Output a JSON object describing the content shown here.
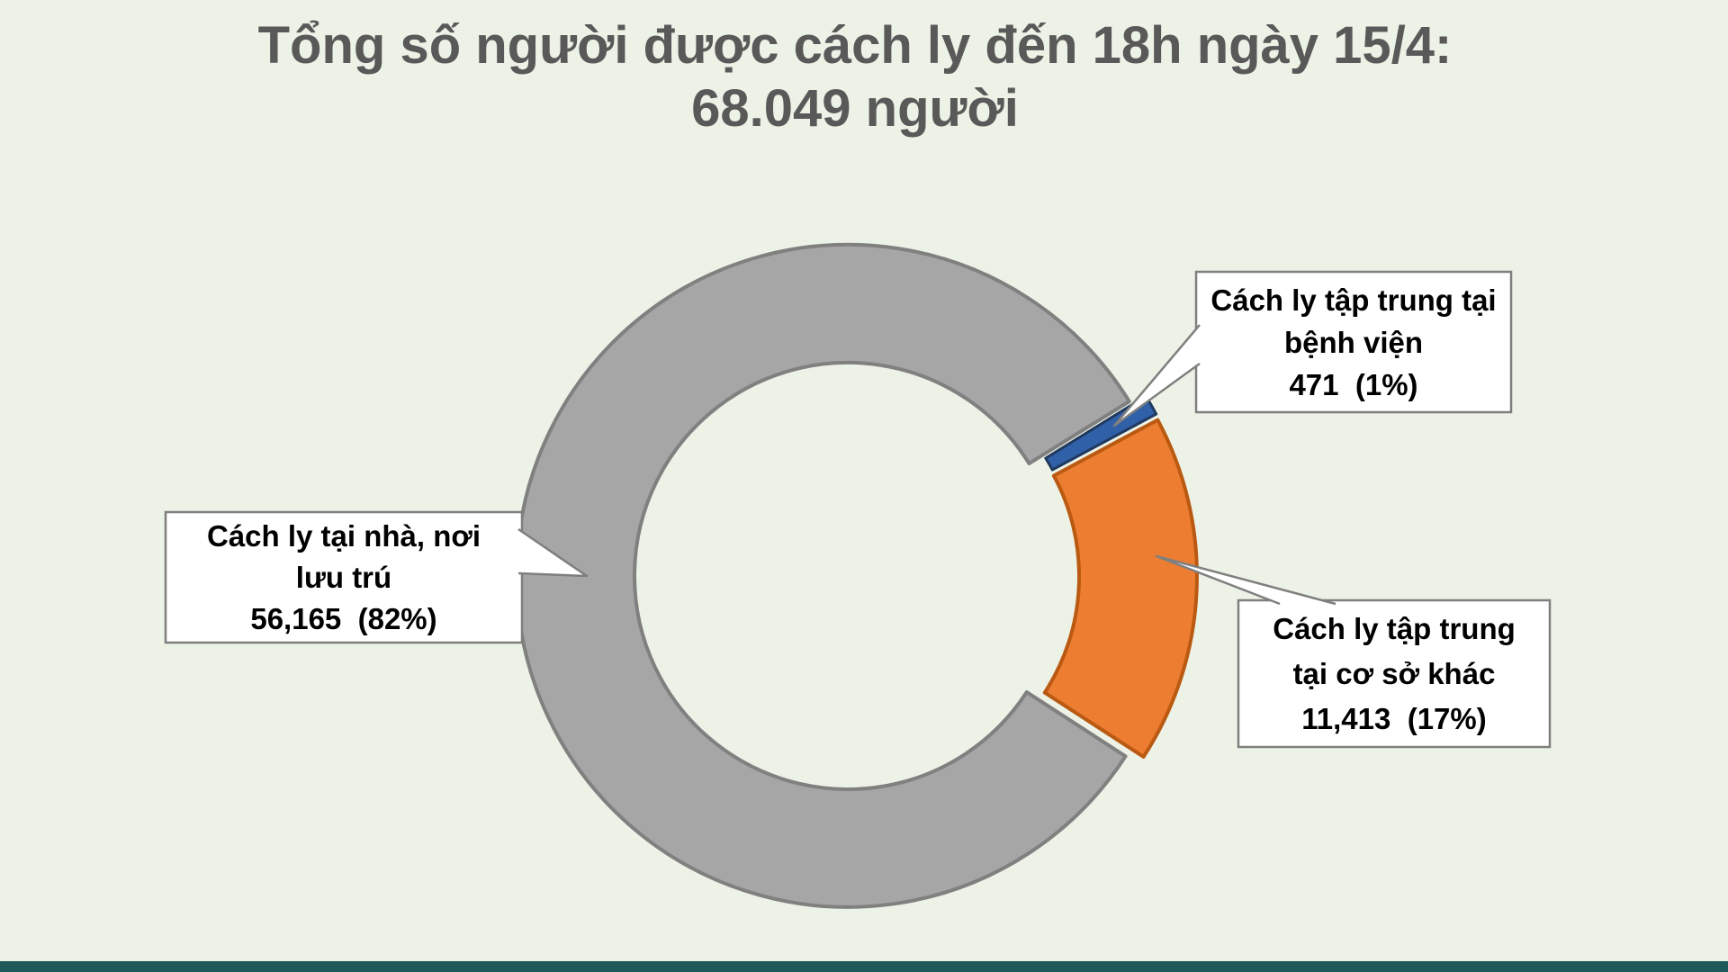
{
  "title": {
    "line1": "Tổng số người được cách ly đến 18h ngày 15/4:",
    "line2": "68.049 người"
  },
  "chart_data": {
    "type": "pie",
    "subtype": "donut-exploded",
    "title": "Tổng số người được cách ly đến 18h ngày 15/4: 68.049 người",
    "total_people": "68.049",
    "donut_hole_ratio": 0.64,
    "start_angle_deg_clockwise_from_top": 123,
    "legend_position": "callouts",
    "grid": false,
    "slices": [
      {
        "id": "home",
        "label": "Cách ly tại nhà, nơi lưu trú",
        "value": 56165,
        "value_text": "56,165",
        "pct": 82,
        "percent_text": "82%",
        "color": "#a6a6a6",
        "border": "#808080"
      },
      {
        "id": "hospital",
        "label": "Cách ly tập trung tại bệnh viện",
        "value": 471,
        "value_text": "471",
        "pct": 1,
        "percent_text": "1%",
        "color": "#3060a8",
        "border": "#20395f"
      },
      {
        "id": "other",
        "label": "Cách ly tập trung tại cơ sở khác",
        "value": 11413,
        "value_text": "11,413",
        "pct": 17,
        "percent_text": "17%",
        "color": "#ed7d31",
        "border": "#ba5a12"
      }
    ]
  },
  "callouts": {
    "home": {
      "line1": "Cách ly tại nhà, nơi",
      "line2": "lưu trú",
      "line3": "56,165  (82%)"
    },
    "hospital": {
      "line1": "Cách ly tập trung tại",
      "line2": "bệnh viện",
      "line3": "471  (1%)"
    },
    "other": {
      "line1": "Cách ly tập trung",
      "line2": "tại cơ sở khác",
      "line3": "11,413  (17%)"
    }
  },
  "colors": {
    "background": "#edf2e6",
    "title_text": "#595959",
    "callout_border": "#7f7f7f",
    "callout_fill": "#ffffff",
    "footer_bar": "#1e5a5a"
  }
}
